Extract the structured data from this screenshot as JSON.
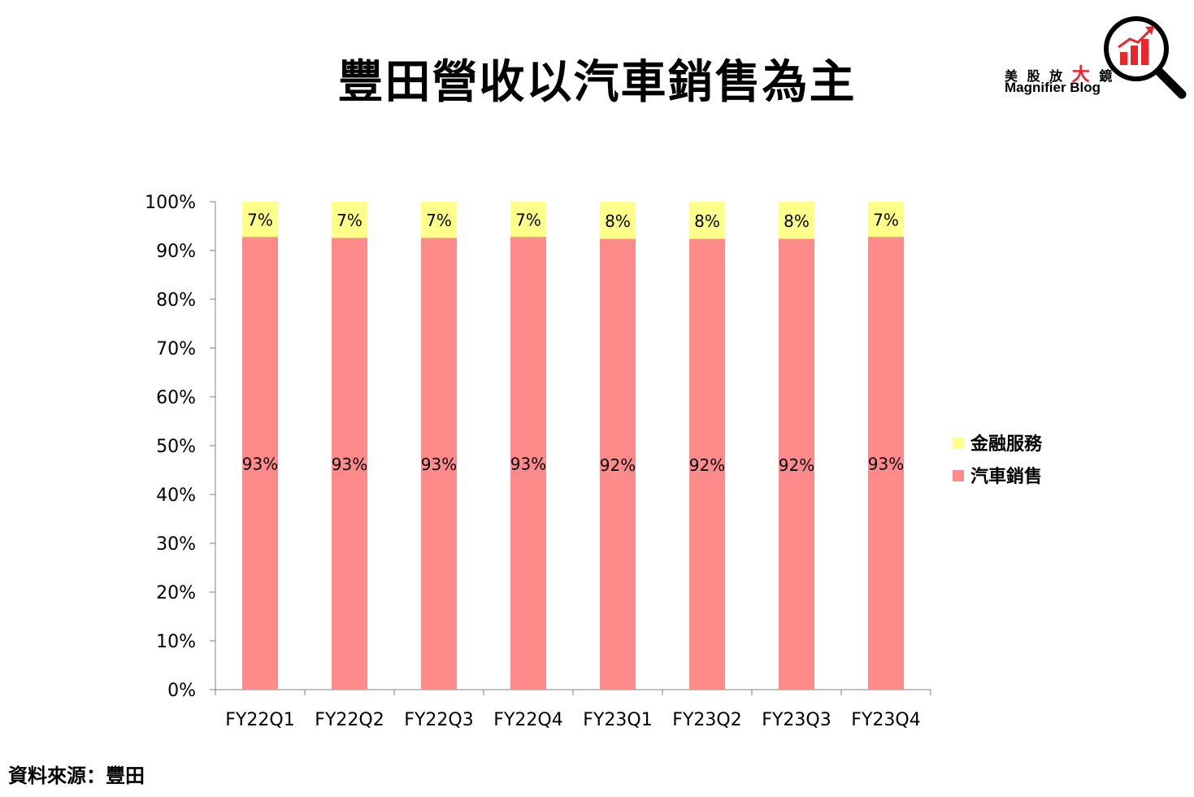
{
  "header": {
    "title": "豐田營收以汽車銷售為主"
  },
  "brand": {
    "name_part1": "美 股 放",
    "name_big": "大",
    "name_part2": "鏡",
    "english": "Magnifier Blog",
    "logo_icon": "magnifier-chart-icon",
    "accent_color": "#e8262c"
  },
  "footer": {
    "source": "資料來源：豐田"
  },
  "chart_data": {
    "type": "bar",
    "stacked": true,
    "percent": true,
    "title": "",
    "xlabel": "",
    "ylabel": "",
    "ylim": [
      0,
      100
    ],
    "yticks": [
      "0%",
      "10%",
      "20%",
      "30%",
      "40%",
      "50%",
      "60%",
      "70%",
      "80%",
      "90%",
      "100%"
    ],
    "grid": false,
    "legend_position": "right",
    "categories": [
      "FY22Q1",
      "FY22Q2",
      "FY22Q3",
      "FY22Q4",
      "FY23Q1",
      "FY23Q2",
      "FY23Q3",
      "FY23Q4"
    ],
    "series": [
      {
        "name": "汽車銷售",
        "color": "#ff8a8a",
        "values": [
          92.8,
          92.6,
          92.6,
          92.8,
          92.4,
          92.4,
          92.4,
          92.8
        ],
        "labels": [
          "93%",
          "93%",
          "93%",
          "93%",
          "92%",
          "92%",
          "92%",
          "93%"
        ]
      },
      {
        "name": "金融服務",
        "color": "#ffff8a",
        "values": [
          7.2,
          7.4,
          7.4,
          7.2,
          7.6,
          7.6,
          7.6,
          7.2
        ],
        "labels": [
          "7%",
          "7%",
          "7%",
          "7%",
          "8%",
          "8%",
          "8%",
          "7%"
        ]
      }
    ],
    "legend_order": [
      "金融服務",
      "汽車銷售"
    ]
  }
}
